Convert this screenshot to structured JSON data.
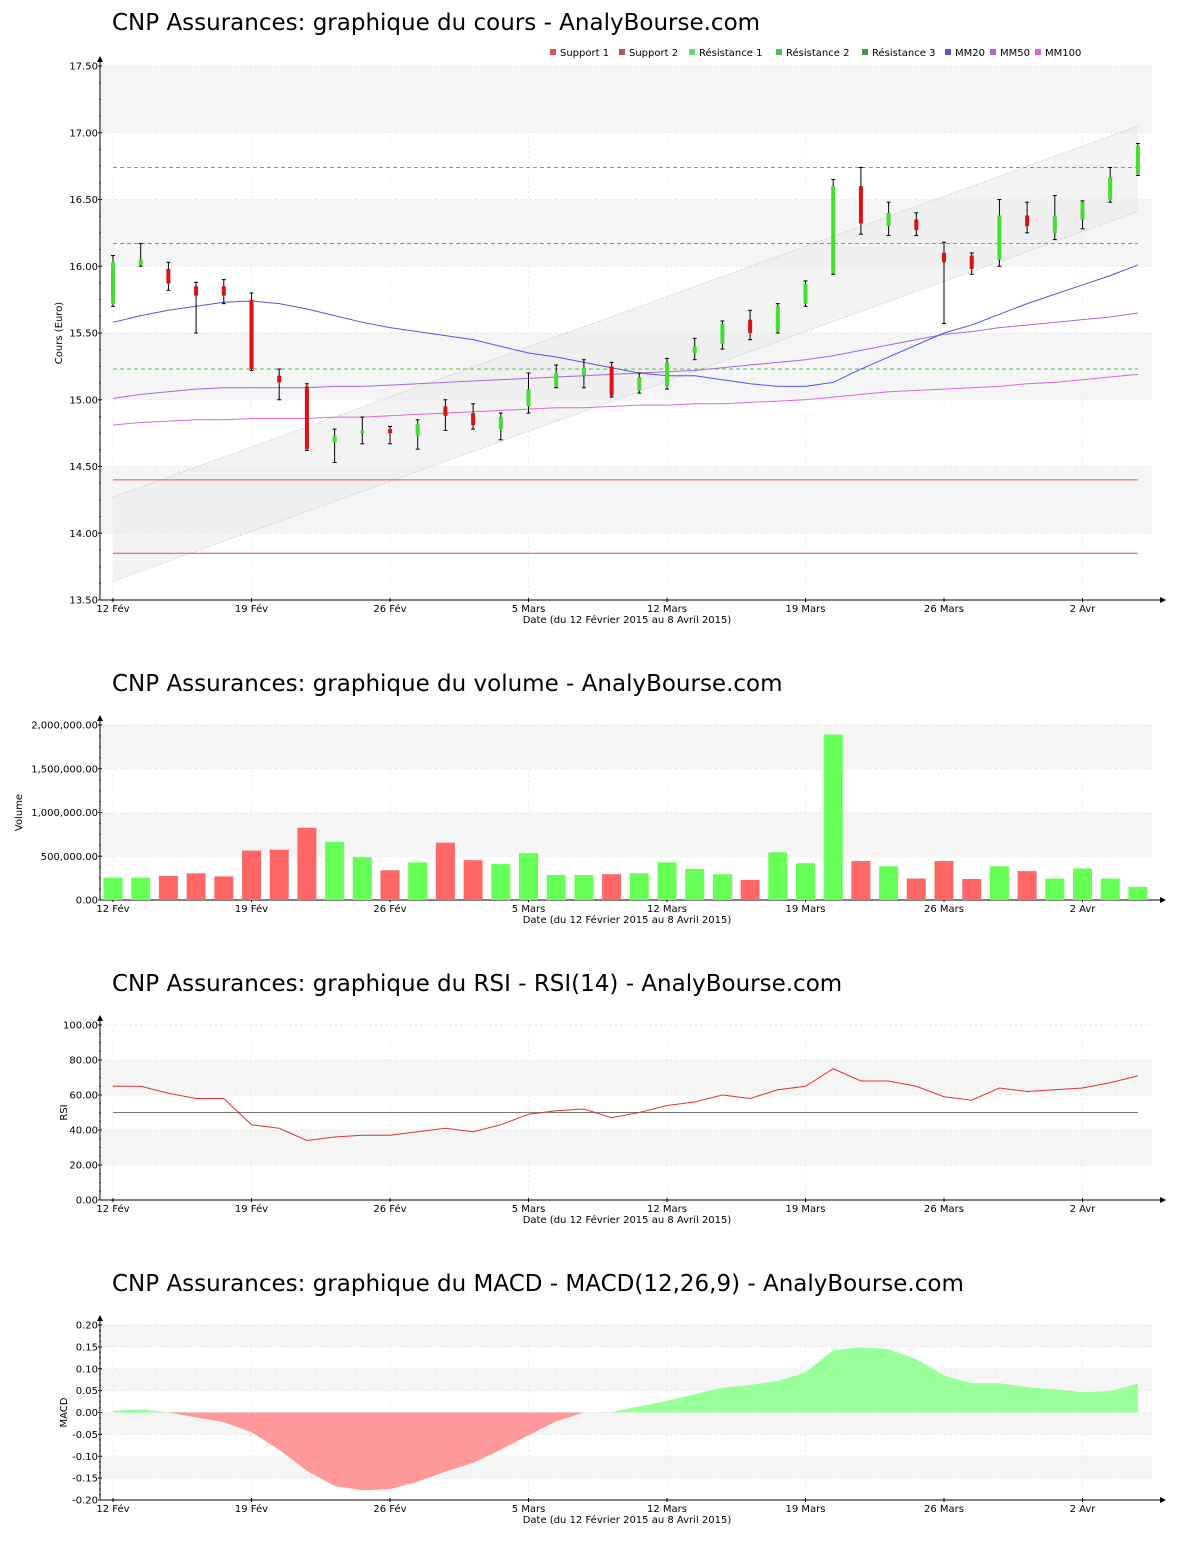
{
  "titles": {
    "price": "CNP Assurances: graphique du cours - AnalyBourse.com",
    "volume": "CNP Assurances: graphique du volume - AnalyBourse.com",
    "rsi": "CNP Assurances: graphique du RSI - RSI(14) - AnalyBourse.com",
    "macd": "CNP Assurances: graphique du MACD - MACD(12,26,9) - AnalyBourse.com"
  },
  "colors": {
    "up": "#44dd33",
    "down": "#dd1111",
    "vol_up": "#66ff55",
    "vol_down": "#ff6666",
    "support": "#dd5555",
    "resistance": "#55bb55",
    "mm20": "#5555dd",
    "mm50": "#aa66dd",
    "mm100": "#dd66dd",
    "macd_pos": "#99ff99",
    "macd_neg": "#ff9999",
    "band_gray": "#f5f5f5"
  },
  "chart_data": [
    {
      "type": "candlestick",
      "id": "price",
      "ylabel": "Cours (Euro)",
      "xlabel": "Date (du 12 Février 2015 au 8 Avril 2015)",
      "ylim": [
        13.5,
        17.5
      ],
      "yticks": [
        "13.50",
        "14.00",
        "14.50",
        "15.00",
        "15.50",
        "16.00",
        "16.50",
        "17.00",
        "17.50"
      ],
      "xticks": [
        {
          "label": "12 Fév",
          "i": 0
        },
        {
          "label": "19 Fév",
          "i": 5
        },
        {
          "label": "26 Fév",
          "i": 10
        },
        {
          "label": "5 Mars",
          "i": 15
        },
        {
          "label": "12 Mars",
          "i": 20
        },
        {
          "label": "19 Mars",
          "i": 25
        },
        {
          "label": "26 Mars",
          "i": 30
        },
        {
          "label": "2 Avr",
          "i": 35
        }
      ],
      "legend": [
        {
          "name": "Support 1",
          "color": "#dd5555"
        },
        {
          "name": "Support 2",
          "color": "#bb5555"
        },
        {
          "name": "Résistance 1",
          "color": "#66dd66"
        },
        {
          "name": "Résistance 2",
          "color": "#55bb55"
        },
        {
          "name": "Résistance 3",
          "color": "#449944"
        },
        {
          "name": "MM20",
          "color": "#5555dd"
        },
        {
          "name": "MM50",
          "color": "#aa66dd"
        },
        {
          "name": "MM100",
          "color": "#dd66dd"
        }
      ],
      "candles": [
        {
          "o": 15.72,
          "c": 16.03,
          "h": 16.08,
          "l": 15.7
        },
        {
          "o": 16.01,
          "c": 16.05,
          "h": 16.17,
          "l": 16.0
        },
        {
          "o": 15.98,
          "c": 15.87,
          "h": 16.03,
          "l": 15.82
        },
        {
          "o": 15.85,
          "c": 15.78,
          "h": 15.88,
          "l": 15.5
        },
        {
          "o": 15.85,
          "c": 15.78,
          "h": 15.9,
          "l": 15.72
        },
        {
          "o": 15.75,
          "c": 15.23,
          "h": 15.8,
          "l": 15.22
        },
        {
          "o": 15.18,
          "c": 15.13,
          "h": 15.23,
          "l": 15.0
        },
        {
          "o": 15.1,
          "c": 14.63,
          "h": 15.12,
          "l": 14.62
        },
        {
          "o": 14.68,
          "c": 14.73,
          "h": 14.78,
          "l": 14.53
        },
        {
          "o": 14.75,
          "c": 14.77,
          "h": 14.87,
          "l": 14.67
        },
        {
          "o": 14.78,
          "c": 14.75,
          "h": 14.8,
          "l": 14.67
        },
        {
          "o": 14.73,
          "c": 14.82,
          "h": 14.85,
          "l": 14.63
        },
        {
          "o": 14.95,
          "c": 14.88,
          "h": 15.0,
          "l": 14.77
        },
        {
          "o": 14.9,
          "c": 14.81,
          "h": 14.97,
          "l": 14.78
        },
        {
          "o": 14.78,
          "c": 14.87,
          "h": 14.9,
          "l": 14.7
        },
        {
          "o": 14.95,
          "c": 15.08,
          "h": 15.2,
          "l": 14.9
        },
        {
          "o": 15.1,
          "c": 15.2,
          "h": 15.26,
          "l": 15.09
        },
        {
          "o": 15.18,
          "c": 15.24,
          "h": 15.3,
          "l": 15.09
        },
        {
          "o": 15.25,
          "c": 15.03,
          "h": 15.28,
          "l": 15.02
        },
        {
          "o": 15.07,
          "c": 15.17,
          "h": 15.2,
          "l": 15.05
        },
        {
          "o": 15.1,
          "c": 15.28,
          "h": 15.31,
          "l": 15.08
        },
        {
          "o": 15.35,
          "c": 15.4,
          "h": 15.46,
          "l": 15.3
        },
        {
          "o": 15.42,
          "c": 15.57,
          "h": 15.59,
          "l": 15.38
        },
        {
          "o": 15.6,
          "c": 15.5,
          "h": 15.67,
          "l": 15.45
        },
        {
          "o": 15.51,
          "c": 15.7,
          "h": 15.72,
          "l": 15.5
        },
        {
          "o": 15.72,
          "c": 15.87,
          "h": 15.89,
          "l": 15.7
        },
        {
          "o": 15.95,
          "c": 16.6,
          "h": 16.65,
          "l": 15.94
        },
        {
          "o": 16.6,
          "c": 16.32,
          "h": 16.74,
          "l": 16.24
        },
        {
          "o": 16.3,
          "c": 16.4,
          "h": 16.48,
          "l": 16.23
        },
        {
          "o": 16.35,
          "c": 16.27,
          "h": 16.4,
          "l": 16.23
        },
        {
          "o": 16.1,
          "c": 16.03,
          "h": 16.18,
          "l": 15.57
        },
        {
          "o": 16.08,
          "c": 15.98,
          "h": 16.1,
          "l": 15.94
        },
        {
          "o": 16.05,
          "c": 16.38,
          "h": 16.5,
          "l": 16.0
        },
        {
          "o": 16.38,
          "c": 16.3,
          "h": 16.48,
          "l": 16.25
        },
        {
          "o": 16.25,
          "c": 16.38,
          "h": 16.53,
          "l": 16.2
        },
        {
          "o": 16.35,
          "c": 16.48,
          "h": 16.49,
          "l": 16.28
        },
        {
          "o": 16.5,
          "c": 16.67,
          "h": 16.74,
          "l": 16.48
        },
        {
          "o": 16.69,
          "c": 16.9,
          "h": 16.92,
          "l": 16.68
        }
      ],
      "supports": [
        14.4,
        13.85
      ],
      "resistances": [
        15.23,
        16.17,
        16.74
      ],
      "channel": {
        "upper": [
          14.27,
          17.05
        ],
        "lower": [
          13.64,
          16.41
        ]
      },
      "mm20": [
        15.58,
        15.63,
        15.67,
        15.7,
        15.73,
        15.74,
        15.72,
        15.68,
        15.63,
        15.58,
        15.54,
        15.51,
        15.48,
        15.45,
        15.4,
        15.35,
        15.32,
        15.28,
        15.24,
        15.2,
        15.18,
        15.18,
        15.15,
        15.12,
        15.1,
        15.1,
        15.13,
        15.23,
        15.32,
        15.41,
        15.5,
        15.56,
        15.64,
        15.72,
        15.79,
        15.86,
        15.93,
        16.01
      ],
      "mm50": [
        15.01,
        15.04,
        15.06,
        15.08,
        15.09,
        15.09,
        15.09,
        15.09,
        15.1,
        15.1,
        15.11,
        15.12,
        15.13,
        15.14,
        15.15,
        15.16,
        15.17,
        15.18,
        15.19,
        15.2,
        15.21,
        15.22,
        15.24,
        15.26,
        15.28,
        15.3,
        15.33,
        15.37,
        15.41,
        15.45,
        15.49,
        15.51,
        15.54,
        15.56,
        15.58,
        15.6,
        15.62,
        15.65
      ],
      "mm100": [
        14.81,
        14.83,
        14.84,
        14.85,
        14.85,
        14.86,
        14.86,
        14.86,
        14.87,
        14.87,
        14.88,
        14.89,
        14.9,
        14.91,
        14.92,
        14.93,
        14.94,
        14.94,
        14.95,
        14.96,
        14.96,
        14.97,
        14.97,
        14.98,
        14.99,
        15.0,
        15.02,
        15.04,
        15.06,
        15.07,
        15.08,
        15.09,
        15.1,
        15.12,
        15.13,
        15.15,
        15.17,
        15.19
      ]
    },
    {
      "type": "bar",
      "id": "volume",
      "ylabel": "Volume",
      "xlabel": "Date (du 12 Février 2015 au 8 Avril 2015)",
      "ylim": [
        0,
        2000000
      ],
      "yticks": [
        "0.00",
        "500,000.00",
        "1,000,000.00",
        "1,500,000.00",
        "2,000,000.00"
      ],
      "values": [
        255000,
        255000,
        275000,
        305000,
        270000,
        565000,
        575000,
        825000,
        665000,
        490000,
        340000,
        430000,
        655000,
        455000,
        410000,
        535000,
        285000,
        285000,
        295000,
        305000,
        430000,
        355000,
        295000,
        230000,
        545000,
        420000,
        1890000,
        445000,
        385000,
        245000,
        445000,
        240000,
        385000,
        330000,
        245000,
        360000,
        245000,
        150000
      ],
      "up": [
        true,
        true,
        false,
        false,
        false,
        false,
        false,
        false,
        true,
        true,
        false,
        true,
        false,
        false,
        true,
        true,
        true,
        true,
        false,
        true,
        true,
        true,
        true,
        false,
        true,
        true,
        true,
        false,
        true,
        false,
        false,
        false,
        true,
        false,
        true,
        true,
        true,
        true
      ]
    },
    {
      "type": "line",
      "id": "rsi",
      "ylabel": "RSI",
      "xlabel": "Date (du 12 Février 2015 au 8 Avril 2015)",
      "ylim": [
        0,
        100
      ],
      "yticks": [
        "0.00",
        "20.00",
        "40.00",
        "60.00",
        "80.00",
        "100.00"
      ],
      "reference": 50,
      "values": [
        65,
        65,
        61,
        58,
        58,
        43,
        41,
        34,
        36,
        37,
        37,
        39,
        41,
        39,
        43,
        49,
        51,
        52,
        47,
        50,
        54,
        56,
        60,
        58,
        63,
        65,
        75,
        68,
        68,
        65,
        59,
        57,
        64,
        62,
        63,
        64,
        67,
        71
      ]
    },
    {
      "type": "area",
      "id": "macd",
      "ylabel": "MACD",
      "xlabel": "Date (du 12 Février 2015 au 8 Avril 2015)",
      "ylim": [
        -0.2,
        0.2
      ],
      "yticks": [
        "-0.20",
        "-0.15",
        "-0.10",
        "-0.05",
        "0.00",
        "0.05",
        "0.10",
        "0.15",
        "0.20"
      ],
      "values": [
        0.004,
        0.007,
        0.001,
        -0.011,
        -0.022,
        -0.045,
        -0.085,
        -0.133,
        -0.168,
        -0.178,
        -0.175,
        -0.158,
        -0.135,
        -0.115,
        -0.085,
        -0.052,
        -0.02,
        0.0,
        0.001,
        0.014,
        0.027,
        0.042,
        0.057,
        0.063,
        0.072,
        0.092,
        0.143,
        0.149,
        0.145,
        0.122,
        0.085,
        0.067,
        0.067,
        0.058,
        0.053,
        0.047,
        0.049,
        0.066
      ]
    }
  ]
}
